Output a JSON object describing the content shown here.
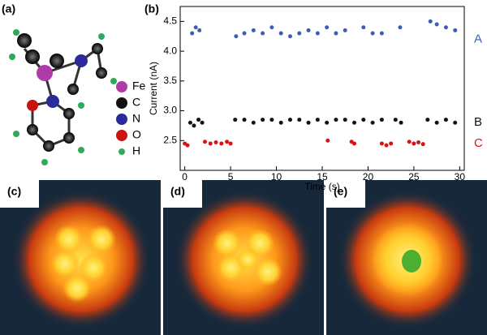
{
  "panel_labels": [
    "(a)",
    "(b)",
    "(c)",
    "(d)",
    "(e)"
  ],
  "legend": [
    {
      "label": "Fe",
      "color": "#b03aa8"
    },
    {
      "label": "C",
      "color": "#111111"
    },
    {
      "label": "N",
      "color": "#2a2a9a"
    },
    {
      "label": "O",
      "color": "#cc1111"
    },
    {
      "label": "H",
      "color": "#2faa5a"
    }
  ],
  "chart_data": {
    "type": "scatter",
    "x_label": "Time (s)",
    "y_label": "Current (nA)",
    "xlim": [
      -0.5,
      30.5
    ],
    "ylim": [
      2.0,
      4.75
    ],
    "xticks": [
      0,
      5,
      10,
      15,
      20,
      25,
      30
    ],
    "yticks": [
      2.5,
      {
        "value": 3,
        "label": "3.0"
      },
      3.5,
      {
        "value": 4,
        "label": "4.0"
      },
      4.5
    ],
    "series": [
      {
        "name": "A",
        "color": "#3a5fb0",
        "label_value": 4.2,
        "x": [
          0.8,
          1.2,
          1.6,
          5.6,
          6.5,
          7.5,
          8.5,
          9.5,
          10.5,
          11.5,
          12.5,
          13.5,
          14.5,
          15.5,
          16.5,
          17.5,
          19.5,
          20.5,
          21.5,
          23.5,
          26.8,
          27.5,
          28.5,
          29.5
        ],
        "values": [
          4.3,
          4.4,
          4.35,
          4.25,
          4.3,
          4.35,
          4.3,
          4.4,
          4.3,
          4.25,
          4.3,
          4.35,
          4.3,
          4.4,
          4.3,
          4.35,
          4.4,
          4.3,
          4.3,
          4.4,
          4.5,
          4.45,
          4.4,
          4.35
        ]
      },
      {
        "name": "B",
        "color": "#111111",
        "label_value": 2.8,
        "x": [
          0.6,
          1.0,
          1.5,
          1.9,
          5.5,
          6.5,
          7.5,
          8.5,
          9.5,
          10.5,
          11.5,
          12.5,
          13.5,
          14.5,
          15.5,
          16.5,
          17.5,
          18.5,
          19.5,
          20.5,
          21.5,
          23.0,
          23.6,
          26.5,
          27.5,
          28.5,
          29.5
        ],
        "values": [
          2.8,
          2.75,
          2.85,
          2.8,
          2.85,
          2.85,
          2.8,
          2.85,
          2.85,
          2.8,
          2.85,
          2.85,
          2.8,
          2.85,
          2.8,
          2.85,
          2.85,
          2.8,
          2.85,
          2.8,
          2.85,
          2.85,
          2.8,
          2.85,
          2.8,
          2.85,
          2.8
        ]
      },
      {
        "name": "C",
        "color": "#dd1111",
        "label_value": 2.45,
        "x": [
          0.0,
          0.3,
          2.2,
          2.8,
          3.4,
          4.0,
          4.6,
          5.0,
          15.6,
          18.2,
          18.5,
          21.5,
          22.0,
          22.5,
          24.5,
          25.0,
          25.5,
          26.0
        ],
        "values": [
          2.45,
          2.42,
          2.48,
          2.45,
          2.47,
          2.45,
          2.48,
          2.45,
          2.5,
          2.48,
          2.45,
          2.45,
          2.42,
          2.45,
          2.48,
          2.45,
          2.47,
          2.44
        ]
      }
    ]
  }
}
